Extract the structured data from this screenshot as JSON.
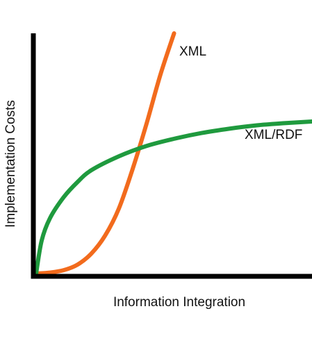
{
  "chart_data": {
    "type": "line",
    "title": "",
    "xlabel": "Information Integration",
    "ylabel": "Implementation Costs",
    "xlim": [
      0,
      1
    ],
    "ylim": [
      0,
      1
    ],
    "grid": false,
    "legend": "inline",
    "series": [
      {
        "name": "XML",
        "color": "#f26b1d",
        "x": [
          0,
          0.05,
          0.1,
          0.15,
          0.2,
          0.25,
          0.3,
          0.35,
          0.4,
          0.45,
          0.5
        ],
        "y": [
          0.0,
          0.004,
          0.014,
          0.037,
          0.083,
          0.158,
          0.271,
          0.436,
          0.623,
          0.826,
          1.0
        ]
      },
      {
        "name": "XML/RDF",
        "color": "#1f9a3e",
        "x": [
          0,
          0.02,
          0.05,
          0.1,
          0.15,
          0.2,
          0.3,
          0.4,
          0.5,
          0.6,
          0.7,
          0.8,
          0.9,
          1.0
        ],
        "y": [
          0.0,
          0.137,
          0.23,
          0.318,
          0.381,
          0.43,
          0.488,
          0.531,
          0.561,
          0.585,
          0.603,
          0.617,
          0.626,
          0.633
        ]
      }
    ]
  }
}
